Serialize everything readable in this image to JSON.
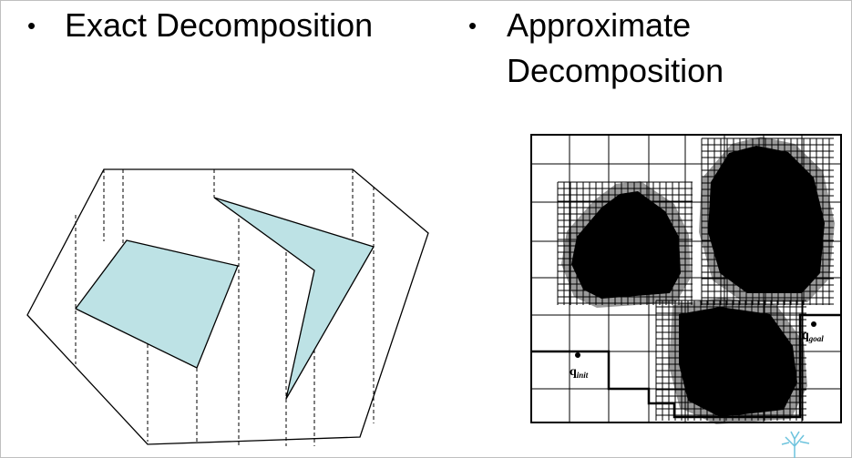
{
  "slide": {
    "bullet_char": "•",
    "left_heading": "Exact Decomposition",
    "right_heading_line1": "Approximate",
    "right_heading_line2": "Decomposition"
  },
  "labels": {
    "q": "q",
    "init": "init",
    "goal": "goal"
  },
  "colors": {
    "obstacle_fill": "#bde2e5",
    "black_obstacle": "#000000",
    "mixed_cell": "#9a9a9a"
  }
}
